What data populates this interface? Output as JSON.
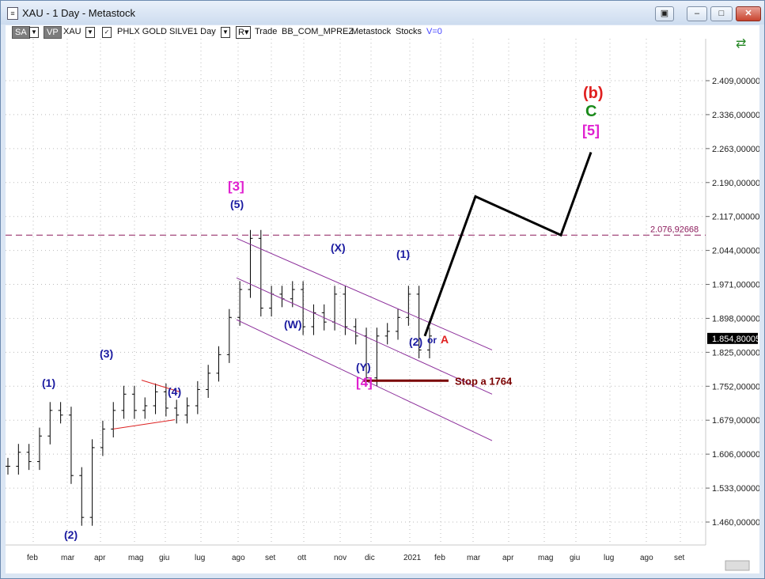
{
  "window": {
    "title": "XAU - 1 Day - Metastock",
    "icon": "document-icon",
    "buttons": [
      "restore-tile",
      "minimize",
      "restore",
      "close"
    ]
  },
  "toolbar": {
    "sa": "SA",
    "vp": "VP",
    "symbol": "XAU",
    "name": "PHLX GOLD SILVE",
    "interval": "1 Day",
    "r": "R",
    "trade": "Trade",
    "account": "BB_COM_MPREZ",
    "source": "Metastock",
    "type": "Stocks",
    "v": "V=0"
  },
  "chart_data": {
    "type": "candlestick",
    "y_ticks": [
      "2.409,00000",
      "2.336,00000",
      "2.263,00000",
      "2.190,00000",
      "2.117,00000",
      "2.044,00000",
      "1.971,00000",
      "1.898,00000",
      "1.825,00000",
      "1.752,00000",
      "1.679,00000",
      "1.606,00000",
      "1.533,00000",
      "1.460,00000"
    ],
    "y_tick_values": [
      2409,
      2336,
      2263,
      2190,
      2117,
      2044,
      1971,
      1898,
      1825,
      1752,
      1679,
      1606,
      1533,
      1460
    ],
    "x_ticks": [
      "feb",
      "mar",
      "apr",
      "mag",
      "giu",
      "lug",
      "ago",
      "set",
      "ott",
      "nov",
      "dic",
      "2021",
      "feb",
      "mar",
      "apr",
      "mag",
      "giu",
      "lug",
      "ago",
      "set"
    ],
    "current_price": "1.854,80005",
    "level_line": {
      "label": "2.076,92668",
      "value": 2076.92668
    },
    "price_path": [
      [
        "feb",
        1580
      ],
      [
        "",
        1610
      ],
      [
        "",
        1590
      ],
      [
        "",
        1645
      ],
      [
        "",
        1700
      ],
      [
        "mar",
        1690
      ],
      [
        "",
        1560
      ],
      [
        "",
        1470
      ],
      [
        "",
        1620
      ],
      [
        "",
        1660
      ],
      [
        "apr",
        1700
      ],
      [
        "",
        1735
      ],
      [
        "",
        1700
      ],
      [
        "mag",
        1710
      ],
      [
        "",
        1740
      ],
      [
        "",
        1705
      ],
      [
        "giu",
        1690
      ],
      [
        "",
        1710
      ],
      [
        "",
        1745
      ],
      [
        "lug",
        1780
      ],
      [
        "",
        1820
      ],
      [
        "",
        1900
      ],
      [
        "ago",
        1960
      ],
      [
        "",
        2070
      ],
      [
        "",
        1920
      ],
      [
        "set",
        1950
      ],
      [
        "",
        1940
      ],
      [
        "",
        1960
      ],
      [
        "ott",
        1880
      ],
      [
        "",
        1910
      ],
      [
        "",
        1890
      ],
      [
        "nov",
        1950
      ],
      [
        "",
        1880
      ],
      [
        "",
        1860
      ],
      [
        "dic",
        1770
      ],
      [
        "",
        1860
      ],
      [
        "",
        1870
      ],
      [
        "2021",
        1900
      ],
      [
        "",
        1950
      ],
      [
        "",
        1830
      ],
      [
        "",
        1860
      ]
    ],
    "elliott_labels": [
      "(1)",
      "(2)",
      "(3)",
      "(4)",
      "(5)",
      "[3]",
      "(W)",
      "(X)",
      "(Y)",
      "[4]",
      "(1)",
      "(2)",
      "or",
      "A",
      "(b)",
      "C",
      "[5]"
    ],
    "forecast_path": [
      1860,
      2160,
      2077,
      2255
    ],
    "stop_line": {
      "label": "Stop a 1764",
      "value": 1764
    }
  }
}
